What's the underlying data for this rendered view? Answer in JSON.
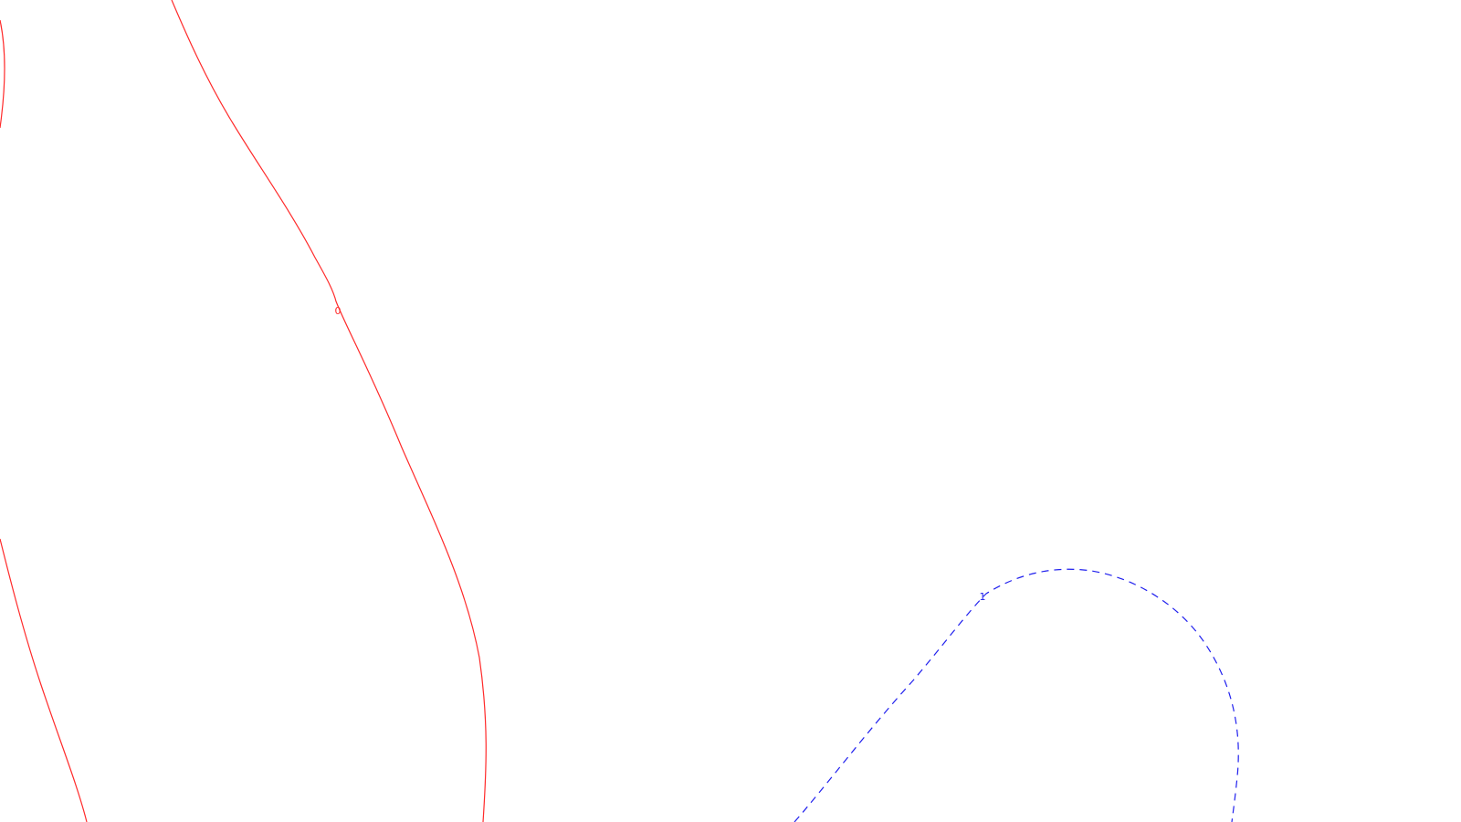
{
  "contours": [
    {
      "id": "contour-0",
      "label": "0",
      "color": "#ff2a2a",
      "line_style": "solid"
    },
    {
      "id": "contour-1",
      "label": "1",
      "color": "#2020ee",
      "line_style": "dashed"
    }
  ]
}
